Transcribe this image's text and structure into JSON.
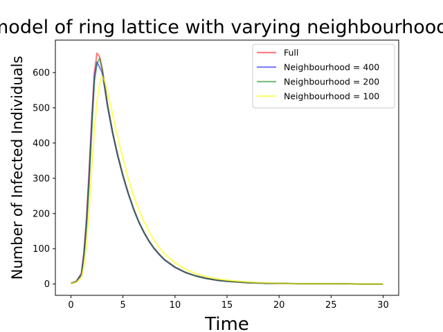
{
  "chart_data": {
    "type": "line",
    "title": "SIR model of ring lattice with varying neighbourhood sizes",
    "xlabel": "Time",
    "ylabel": "Number of Infected Individuals",
    "xlim": [
      -1.5,
      31.5
    ],
    "ylim": [
      -32,
      692
    ],
    "xticks": [
      0,
      5,
      10,
      15,
      20,
      25,
      30
    ],
    "yticks": [
      0,
      100,
      200,
      300,
      400,
      500,
      600
    ],
    "grid": false,
    "legend_position": "top-right",
    "x": [
      0,
      0.5,
      1,
      1.25,
      1.5,
      1.75,
      2,
      2.25,
      2.5,
      2.75,
      3,
      3.25,
      3.5,
      4,
      4.5,
      5,
      5.5,
      6,
      6.5,
      7,
      7.5,
      8,
      8.5,
      9,
      10,
      11,
      12,
      13,
      14,
      15,
      16,
      17,
      18,
      19,
      20,
      22,
      24,
      26,
      28,
      30
    ],
    "series": [
      {
        "name": "Full",
        "color": "#ff0000",
        "opacity": 0.5,
        "values": [
          2,
          7,
          30,
          90,
          190,
          320,
          470,
          600,
          655,
          645,
          610,
          560,
          510,
          430,
          365,
          308,
          258,
          215,
          178,
          148,
          122,
          101,
          84,
          69,
          48,
          33,
          23,
          16,
          11,
          8,
          6,
          4,
          3,
          2,
          2,
          1,
          1,
          1,
          0,
          0
        ]
      },
      {
        "name": "Neighbourhood = 400",
        "color": "#0000ff",
        "opacity": 0.5,
        "values": [
          2,
          7,
          28,
          85,
          180,
          310,
          460,
          590,
          630,
          615,
          600,
          555,
          505,
          428,
          362,
          306,
          257,
          214,
          177,
          147,
          121,
          100,
          83,
          68,
          47,
          33,
          23,
          16,
          11,
          8,
          6,
          4,
          3,
          2,
          2,
          1,
          1,
          1,
          0,
          0
        ]
      },
      {
        "name": "Neighbourhood = 200",
        "color": "#008000",
        "opacity": 0.5,
        "values": [
          2,
          6,
          25,
          78,
          165,
          290,
          440,
          575,
          625,
          640,
          612,
          562,
          510,
          430,
          364,
          307,
          258,
          215,
          178,
          147,
          122,
          101,
          84,
          69,
          48,
          33,
          23,
          16,
          11,
          8,
          6,
          4,
          3,
          2,
          2,
          1,
          1,
          1,
          0,
          0
        ]
      },
      {
        "name": "Neighbourhood = 100",
        "color": "#ffff00",
        "opacity": 0.6,
        "values": [
          2,
          5,
          18,
          52,
          115,
          210,
          330,
          440,
          520,
          570,
          590,
          575,
          545,
          480,
          415,
          355,
          300,
          252,
          212,
          178,
          149,
          124,
          103,
          86,
          60,
          42,
          29,
          21,
          15,
          11,
          8,
          6,
          4,
          3,
          2,
          1,
          1,
          1,
          0,
          0
        ]
      }
    ]
  }
}
